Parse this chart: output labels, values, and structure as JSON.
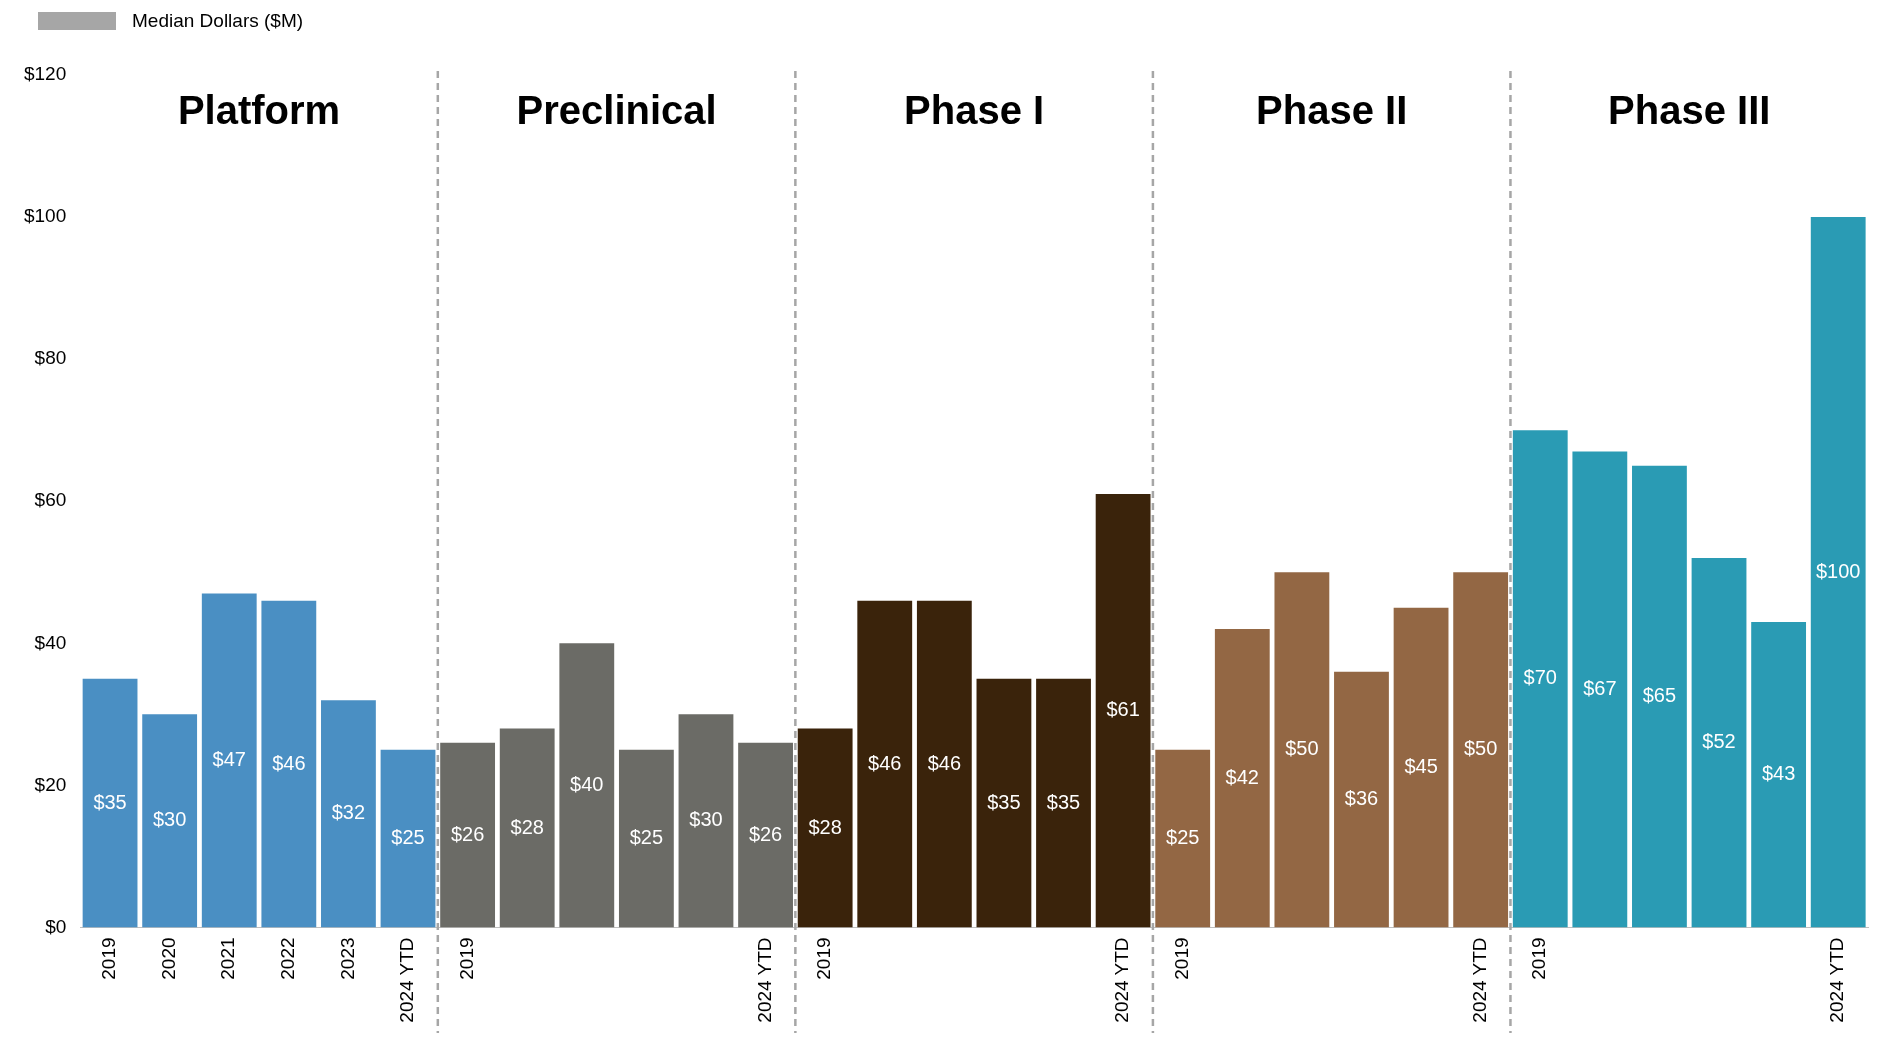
{
  "chart_data": {
    "type": "bar",
    "categories": [
      "2019",
      "2020",
      "2021",
      "2022",
      "2023",
      "2024 YTD",
      "2019",
      null,
      null,
      null,
      null,
      "2024 YTD",
      "2019",
      null,
      null,
      null,
      null,
      "2024 YTD",
      "2019",
      null,
      null,
      null,
      null,
      "2024 YTD",
      "2019",
      null,
      null,
      null,
      null,
      "2024 YTD"
    ],
    "series": [
      {
        "name": "Median Dollars ($M)",
        "color": "#a6a6a6",
        "values": [
          35,
          30,
          47,
          46,
          32,
          25,
          26,
          28,
          40,
          25,
          30,
          26,
          28,
          46,
          46,
          35,
          35,
          61,
          25,
          42,
          50,
          36,
          45,
          50,
          70,
          67,
          65,
          52,
          43,
          100
        ],
        "value_labels": [
          "$35",
          "$30",
          "$47",
          "$46",
          "$32",
          "$25",
          "$26",
          "$28",
          "$40",
          "$25",
          "$30",
          "$26",
          "$28",
          "$46",
          "$46",
          "$35",
          "$35",
          "$61",
          "$25",
          "$42",
          "$50",
          "$36",
          "$45",
          "$50",
          "$70",
          "$67",
          "$65",
          "$52",
          "$43",
          "$100"
        ],
        "colors": [
          "#4a8fc3",
          "#4a8fc3",
          "#4a8fc3",
          "#4a8fc3",
          "#4a8fc3",
          "#4a8fc3",
          "#6b6b66",
          "#6b6b66",
          "#6b6b66",
          "#6b6b66",
          "#6b6b66",
          "#6b6b66",
          "#3a230b",
          "#3a230b",
          "#3a230b",
          "#3a230b",
          "#3a230b",
          "#3a230b",
          "#936744",
          "#936744",
          "#936744",
          "#936744",
          "#936744",
          "#936744",
          "#2a9bb4",
          "#2a9bb4",
          "#2a9bb4",
          "#2a9bb4",
          "#2a9bb4",
          "#2a9bb4"
        ]
      }
    ],
    "annotations": [
      "Platform",
      "Preclinical",
      "Phase I",
      "Phase II",
      "Phase III"
    ],
    "ylim": [
      0,
      120
    ],
    "yticks": [
      {
        "value": 0,
        "label": "$0"
      },
      {
        "value": 20,
        "label": "$20"
      },
      {
        "value": 40,
        "label": "$40"
      },
      {
        "value": 60,
        "label": "$60"
      },
      {
        "value": 80,
        "label": "$80"
      },
      {
        "value": 100,
        "label": "$100"
      },
      {
        "value": 120,
        "label": "$120"
      }
    ],
    "grid": false,
    "legend": "top left"
  }
}
